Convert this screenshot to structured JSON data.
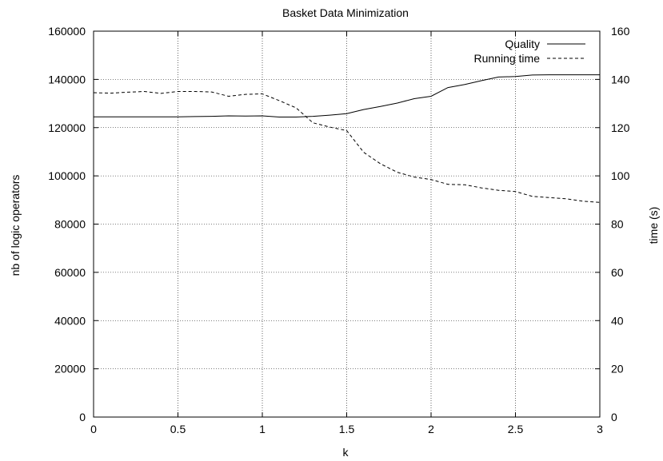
{
  "chart_data": {
    "type": "line",
    "title": "Basket Data Minimization",
    "xlabel": "k",
    "ylabel": "nb of logic operators",
    "y2label": "time (s)",
    "xlim": [
      0,
      3
    ],
    "ylim": [
      0,
      160000
    ],
    "y2lim": [
      0,
      160
    ],
    "xticks": [
      "0",
      "0.5",
      "1",
      "1.5",
      "2",
      "2.5",
      "3"
    ],
    "yticks": [
      "0",
      "20000",
      "40000",
      "60000",
      "80000",
      "100000",
      "120000",
      "140000",
      "160000"
    ],
    "y2ticks": [
      "0",
      "20",
      "40",
      "60",
      "80",
      "100",
      "120",
      "140",
      "160"
    ],
    "grid": true,
    "legend_position": "top-right",
    "series": [
      {
        "name": "Quality",
        "axis": "left",
        "style": "solid",
        "x": [
          0,
          0.1,
          0.2,
          0.3,
          0.4,
          0.5,
          0.6,
          0.7,
          0.8,
          0.9,
          1.0,
          1.1,
          1.2,
          1.3,
          1.4,
          1.5,
          1.6,
          1.7,
          1.8,
          1.9,
          2.0,
          2.1,
          2.2,
          2.3,
          2.4,
          2.5,
          2.6,
          2.7,
          2.8,
          2.9,
          3.0
        ],
        "values": [
          124500,
          124500,
          124500,
          124500,
          124500,
          124500,
          124600,
          124700,
          124900,
          124800,
          124900,
          124400,
          124400,
          124700,
          125200,
          125800,
          127500,
          128800,
          130200,
          132000,
          133000,
          136600,
          137900,
          139500,
          141000,
          141200,
          141800,
          141900,
          141900,
          141900,
          141900
        ]
      },
      {
        "name": "Running time",
        "axis": "right",
        "style": "dashed",
        "x": [
          0,
          0.1,
          0.2,
          0.3,
          0.4,
          0.5,
          0.6,
          0.7,
          0.8,
          0.9,
          1.0,
          1.1,
          1.2,
          1.3,
          1.4,
          1.5,
          1.6,
          1.7,
          1.8,
          1.9,
          2.0,
          2.1,
          2.2,
          2.3,
          2.4,
          2.5,
          2.6,
          2.7,
          2.8,
          2.9,
          3.0
        ],
        "values": [
          134.5,
          134.3,
          134.7,
          135.0,
          134.2,
          135.0,
          135.0,
          134.8,
          133.0,
          133.8,
          134.0,
          131.2,
          128.2,
          122.0,
          120.2,
          118.8,
          109.8,
          105.0,
          101.5,
          99.5,
          98.5,
          96.5,
          96.3,
          95.0,
          94.0,
          93.5,
          91.5,
          91.0,
          90.5,
          89.5,
          89.0
        ]
      }
    ]
  }
}
